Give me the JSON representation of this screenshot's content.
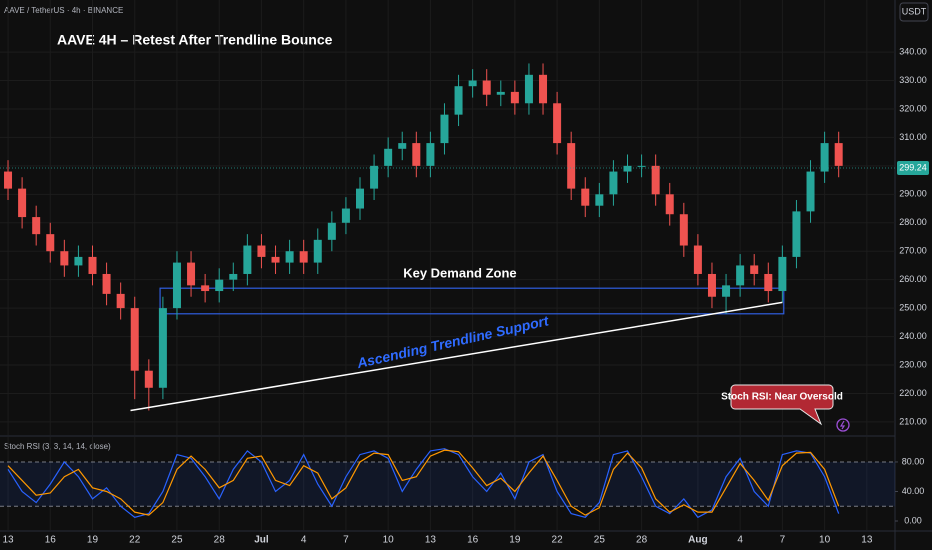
{
  "header": {
    "symbol": "AAVE / TetherUS · 4h · BINANCE",
    "currency": "USDT"
  },
  "chart_data": [
    {
      "type": "candlestick",
      "title": "AAVE 4H – Retest After Trendline Bounce",
      "x": [
        0,
        1,
        2,
        3,
        4,
        5,
        6,
        7,
        8,
        9,
        10,
        11,
        12,
        13,
        14,
        15,
        16,
        17,
        18,
        19,
        20,
        21,
        22,
        23,
        24,
        25,
        26,
        27,
        28,
        29,
        30,
        31,
        32,
        33,
        34,
        35,
        36,
        37,
        38,
        39,
        40,
        41,
        42,
        43,
        44,
        45,
        46,
        47,
        48,
        49,
        50,
        51,
        52,
        53,
        54,
        55,
        56,
        57,
        58,
        59
      ],
      "open": [
        298,
        292,
        282,
        276,
        270,
        265,
        268,
        262,
        255,
        250,
        228,
        222,
        250,
        266,
        258,
        256,
        260,
        262,
        272,
        268,
        266,
        270,
        266,
        274,
        280,
        285,
        292,
        300,
        306,
        308,
        300,
        308,
        318,
        328,
        330,
        325,
        326,
        322,
        332,
        322,
        308,
        292,
        286,
        290,
        298,
        300,
        300,
        290,
        283,
        272,
        262,
        254,
        258,
        265,
        262,
        256,
        268,
        284,
        298,
        308
      ],
      "high": [
        302,
        296,
        286,
        280,
        274,
        272,
        272,
        266,
        259,
        254,
        232,
        254,
        270,
        270,
        262,
        264,
        266,
        276,
        276,
        272,
        274,
        274,
        278,
        284,
        289,
        296,
        304,
        310,
        312,
        312,
        312,
        322,
        332,
        334,
        334,
        330,
        330,
        336,
        336,
        326,
        312,
        296,
        294,
        302,
        304,
        304,
        304,
        294,
        287,
        276,
        266,
        262,
        269,
        269,
        266,
        272,
        288,
        302,
        312,
        312
      ],
      "low": [
        288,
        278,
        272,
        266,
        261,
        261,
        258,
        251,
        246,
        218,
        214,
        218,
        246,
        254,
        252,
        252,
        256,
        258,
        264,
        262,
        262,
        262,
        262,
        270,
        276,
        281,
        288,
        296,
        302,
        296,
        296,
        304,
        314,
        324,
        321,
        321,
        318,
        318,
        318,
        304,
        288,
        282,
        282,
        286,
        294,
        296,
        286,
        279,
        268,
        258,
        250,
        248,
        254,
        258,
        252,
        252,
        264,
        280,
        294,
        296
      ],
      "close": [
        292,
        282,
        276,
        270,
        265,
        268,
        262,
        255,
        250,
        228,
        222,
        250,
        266,
        258,
        256,
        260,
        262,
        272,
        268,
        266,
        270,
        266,
        274,
        280,
        285,
        292,
        300,
        306,
        308,
        300,
        308,
        318,
        328,
        330,
        325,
        326,
        322,
        332,
        322,
        308,
        292,
        286,
        290,
        298,
        300,
        300,
        290,
        283,
        272,
        262,
        254,
        258,
        265,
        262,
        256,
        268,
        284,
        298,
        308,
        300
      ],
      "up_color": "#26a69a",
      "down_color": "#ef5350",
      "xlim": [
        -0.57,
        63
      ],
      "xticks": [
        {
          "value": 0,
          "label": "13"
        },
        {
          "value": 3,
          "label": "16"
        },
        {
          "value": 6,
          "label": "19"
        },
        {
          "value": 9,
          "label": "22"
        },
        {
          "value": 12,
          "label": "25"
        },
        {
          "value": 15,
          "label": "28"
        },
        {
          "value": 18,
          "label": "Jul"
        },
        {
          "value": 21,
          "label": "4"
        },
        {
          "value": 24,
          "label": "7"
        },
        {
          "value": 27,
          "label": "10"
        },
        {
          "value": 30,
          "label": "13"
        },
        {
          "value": 33,
          "label": "16"
        },
        {
          "value": 36,
          "label": "19"
        },
        {
          "value": 39,
          "label": "22"
        },
        {
          "value": 42,
          "label": "25"
        },
        {
          "value": 45,
          "label": "28"
        },
        {
          "value": 49,
          "label": "Aug"
        },
        {
          "value": 52,
          "label": "4"
        },
        {
          "value": 55,
          "label": "7"
        },
        {
          "value": 58,
          "label": "10"
        },
        {
          "value": 61,
          "label": "13"
        }
      ],
      "ylim": [
        205.4,
        358.3
      ],
      "yticks": [
        {
          "value": 210,
          "label": "210.00"
        },
        {
          "value": 220,
          "label": "220.00"
        },
        {
          "value": 230,
          "label": "230.00"
        },
        {
          "value": 240,
          "label": "240.00"
        },
        {
          "value": 250,
          "label": "250.00"
        },
        {
          "value": 260,
          "label": "260.00"
        },
        {
          "value": 270,
          "label": "270.00"
        },
        {
          "value": 280,
          "label": "280.00"
        },
        {
          "value": 290,
          "label": "290.00"
        },
        {
          "value": 300,
          "label": "300.00"
        },
        {
          "value": 310,
          "label": "310.00"
        },
        {
          "value": 320,
          "label": "320.00"
        },
        {
          "value": 330,
          "label": "330.00"
        },
        {
          "value": 340,
          "label": "340.00"
        }
      ],
      "grid": true,
      "last_price": 299.24,
      "zone": {
        "label": "Key Demand Zone",
        "x": [
          10.8,
          55.1
        ],
        "y": [
          248,
          257
        ],
        "color": "#2f5fe0"
      },
      "trendline": {
        "label": "Ascending Trendline Support",
        "x": [
          8.7,
          55
        ],
        "y": [
          214,
          252
        ],
        "color": "#ffffff",
        "label_color": "#2f6bff"
      },
      "callout": "Stoch RSI: Near Oversold"
    },
    {
      "type": "line",
      "title": "Stoch RSI (3, 3, 14, 14, close)",
      "x": [
        0,
        1,
        2,
        3,
        4,
        5,
        6,
        7,
        8,
        9,
        10,
        11,
        12,
        13,
        14,
        15,
        16,
        17,
        18,
        19,
        20,
        21,
        22,
        23,
        24,
        25,
        26,
        27,
        28,
        29,
        30,
        31,
        32,
        33,
        34,
        35,
        36,
        37,
        38,
        39,
        40,
        41,
        42,
        43,
        44,
        45,
        46,
        47,
        48,
        49,
        50,
        51,
        52,
        53,
        54,
        55,
        56,
        57,
        58,
        59
      ],
      "series": [
        {
          "color": "#2962ff",
          "values": [
            70,
            40,
            25,
            50,
            80,
            60,
            30,
            45,
            20,
            5,
            10,
            40,
            90,
            85,
            60,
            30,
            70,
            95,
            80,
            40,
            55,
            90,
            50,
            20,
            60,
            90,
            95,
            85,
            40,
            70,
            95,
            98,
            90,
            60,
            40,
            65,
            30,
            80,
            90,
            40,
            10,
            5,
            25,
            90,
            95,
            60,
            20,
            10,
            30,
            5,
            15,
            60,
            85,
            40,
            20,
            90,
            95,
            92,
            60,
            10
          ]
        },
        {
          "color": "#ff9800",
          "values": [
            75,
            55,
            35,
            38,
            60,
            70,
            45,
            40,
            30,
            12,
            8,
            25,
            70,
            88,
            70,
            45,
            55,
            85,
            88,
            55,
            48,
            75,
            65,
            30,
            45,
            80,
            92,
            90,
            55,
            60,
            88,
            96,
            94,
            72,
            48,
            58,
            40,
            65,
            88,
            55,
            20,
            8,
            18,
            70,
            92,
            72,
            30,
            12,
            22,
            12,
            12,
            45,
            78,
            55,
            28,
            75,
            92,
            93,
            70,
            20
          ]
        }
      ],
      "band": [
        20,
        80
      ],
      "xlim": [
        -0.57,
        63
      ],
      "ylim": [
        -12.2,
        112.5
      ],
      "yticks": [
        {
          "value": 0,
          "label": "0.00"
        },
        {
          "value": 40,
          "label": "40.00"
        },
        {
          "value": 80,
          "label": "80.00"
        }
      ]
    }
  ]
}
